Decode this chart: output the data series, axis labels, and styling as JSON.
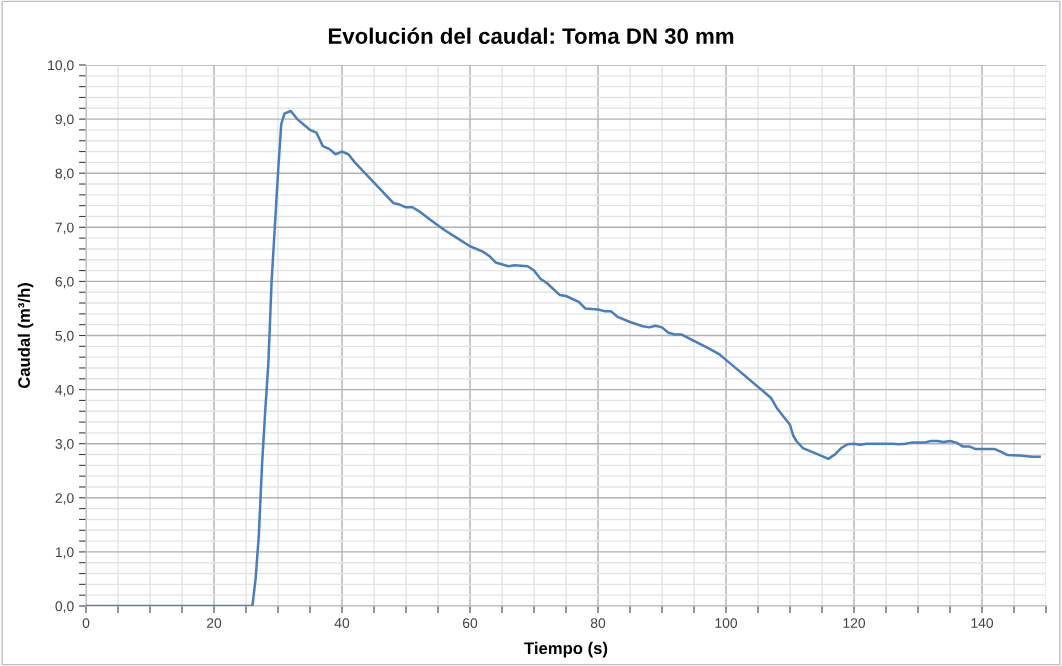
{
  "chart_data": {
    "type": "line",
    "title": "Evolución del caudal: Toma DN 30 mm",
    "xlabel": "Tiempo (s)",
    "ylabel": "Caudal (m³/h)",
    "xlim": [
      0,
      150
    ],
    "xticks": [
      0,
      {
        "value": 5,
        "label": null
      },
      {
        "value": 10,
        "label": null
      },
      {
        "value": 15,
        "label": null
      },
      20,
      {
        "value": 25,
        "label": null
      },
      {
        "value": 30,
        "label": null
      },
      {
        "value": 35,
        "label": null
      },
      40,
      {
        "value": 45,
        "label": null
      },
      {
        "value": 50,
        "label": null
      },
      {
        "value": 55,
        "label": null
      },
      60,
      {
        "value": 65,
        "label": null
      },
      {
        "value": 70,
        "label": null
      },
      {
        "value": 75,
        "label": null
      },
      80,
      {
        "value": 85,
        "label": null
      },
      {
        "value": 90,
        "label": null
      },
      {
        "value": 95,
        "label": null
      },
      100,
      {
        "value": 105,
        "label": null
      },
      {
        "value": 110,
        "label": null
      },
      {
        "value": 115,
        "label": null
      },
      120,
      {
        "value": 125,
        "label": null
      },
      {
        "value": 130,
        "label": null
      },
      {
        "value": 135,
        "label": null
      },
      140,
      {
        "value": 145,
        "label": null
      },
      {
        "value": 150,
        "label": null
      }
    ],
    "ylim": [
      0,
      10
    ],
    "yticks": [
      {
        "value": 0,
        "label": "0,0"
      },
      {
        "value": 0.2,
        "label": null
      },
      {
        "value": 0.4,
        "label": null
      },
      {
        "value": 0.6,
        "label": null
      },
      {
        "value": 0.8,
        "label": null
      },
      {
        "value": 1,
        "label": "1,0"
      },
      {
        "value": 1.2,
        "label": null
      },
      {
        "value": 1.4,
        "label": null
      },
      {
        "value": 1.6,
        "label": null
      },
      {
        "value": 1.8,
        "label": null
      },
      {
        "value": 2,
        "label": "2,0"
      },
      {
        "value": 2.2,
        "label": null
      },
      {
        "value": 2.4,
        "label": null
      },
      {
        "value": 2.6,
        "label": null
      },
      {
        "value": 2.8,
        "label": null
      },
      {
        "value": 3,
        "label": "3,0"
      },
      {
        "value": 3.2,
        "label": null
      },
      {
        "value": 3.4,
        "label": null
      },
      {
        "value": 3.6,
        "label": null
      },
      {
        "value": 3.8,
        "label": null
      },
      {
        "value": 4,
        "label": "4,0"
      },
      {
        "value": 4.2,
        "label": null
      },
      {
        "value": 4.4,
        "label": null
      },
      {
        "value": 4.6,
        "label": null
      },
      {
        "value": 4.8,
        "label": null
      },
      {
        "value": 5,
        "label": "5,0"
      },
      {
        "value": 5.2,
        "label": null
      },
      {
        "value": 5.4,
        "label": null
      },
      {
        "value": 5.6,
        "label": null
      },
      {
        "value": 5.8,
        "label": null
      },
      {
        "value": 6,
        "label": "6,0"
      },
      {
        "value": 6.2,
        "label": null
      },
      {
        "value": 6.4,
        "label": null
      },
      {
        "value": 6.6,
        "label": null
      },
      {
        "value": 6.8,
        "label": null
      },
      {
        "value": 7,
        "label": "7,0"
      },
      {
        "value": 7.2,
        "label": null
      },
      {
        "value": 7.4,
        "label": null
      },
      {
        "value": 7.6,
        "label": null
      },
      {
        "value": 7.8,
        "label": null
      },
      {
        "value": 8,
        "label": "8,0"
      },
      {
        "value": 8.2,
        "label": null
      },
      {
        "value": 8.4,
        "label": null
      },
      {
        "value": 8.6,
        "label": null
      },
      {
        "value": 8.8,
        "label": null
      },
      {
        "value": 9,
        "label": "9,0"
      },
      {
        "value": 9.2,
        "label": null
      },
      {
        "value": 9.4,
        "label": null
      },
      {
        "value": 9.6,
        "label": null
      },
      {
        "value": 9.8,
        "label": null
      },
      {
        "value": 10,
        "label": "10,0"
      }
    ],
    "grid": true,
    "marker": "none",
    "line_style": "solid",
    "series": [
      {
        "color": "#4a7ebb",
        "x": [
          0,
          25.5,
          26,
          26.5,
          27,
          27.5,
          28,
          28.5,
          29,
          30,
          30.5,
          31,
          32,
          33,
          34,
          35,
          36,
          37,
          38,
          39,
          40,
          41,
          42,
          44,
          46,
          48,
          49,
          50,
          51,
          52,
          54,
          56,
          58,
          60,
          62,
          63,
          64,
          66,
          67,
          69,
          70,
          71,
          72,
          74,
          75,
          77,
          78,
          80,
          81,
          82,
          83,
          85,
          87,
          88,
          89,
          90,
          91,
          92,
          93,
          95,
          97,
          99,
          100,
          102,
          103,
          105,
          106,
          107,
          108,
          109,
          110,
          110.5,
          111,
          112,
          114,
          115,
          116,
          117,
          118,
          119,
          120,
          121,
          122,
          124,
          126,
          127,
          128,
          129,
          131,
          132,
          133,
          134,
          135,
          136,
          137,
          138,
          139,
          141,
          142,
          143,
          144,
          146,
          147,
          148,
          149
        ],
        "values": [
          0,
          0,
          0,
          0.5,
          1.3,
          2.6,
          3.6,
          4.5,
          6.0,
          8.0,
          8.9,
          9.1,
          9.15,
          9.0,
          8.9,
          8.8,
          8.75,
          8.5,
          8.45,
          8.35,
          8.4,
          8.35,
          8.2,
          7.95,
          7.7,
          7.45,
          7.42,
          7.37,
          7.37,
          7.3,
          7.12,
          6.95,
          6.8,
          6.65,
          6.55,
          6.47,
          6.35,
          6.28,
          6.3,
          6.28,
          6.2,
          6.05,
          5.97,
          5.75,
          5.73,
          5.62,
          5.5,
          5.48,
          5.45,
          5.45,
          5.35,
          5.25,
          5.17,
          5.15,
          5.18,
          5.15,
          5.05,
          5.02,
          5.02,
          4.9,
          4.78,
          4.65,
          4.55,
          4.35,
          4.25,
          4.05,
          3.95,
          3.85,
          3.65,
          3.5,
          3.35,
          3.15,
          3.05,
          2.92,
          2.82,
          2.77,
          2.72,
          2.8,
          2.92,
          2.99,
          3.0,
          2.98,
          3.0,
          3.0,
          3.0,
          2.99,
          3.0,
          3.02,
          3.02,
          3.05,
          3.05,
          3.03,
          3.05,
          3.02,
          2.95,
          2.95,
          2.9,
          2.9,
          2.9,
          2.85,
          2.79,
          2.78,
          2.77,
          2.76,
          2.76
        ]
      }
    ]
  }
}
